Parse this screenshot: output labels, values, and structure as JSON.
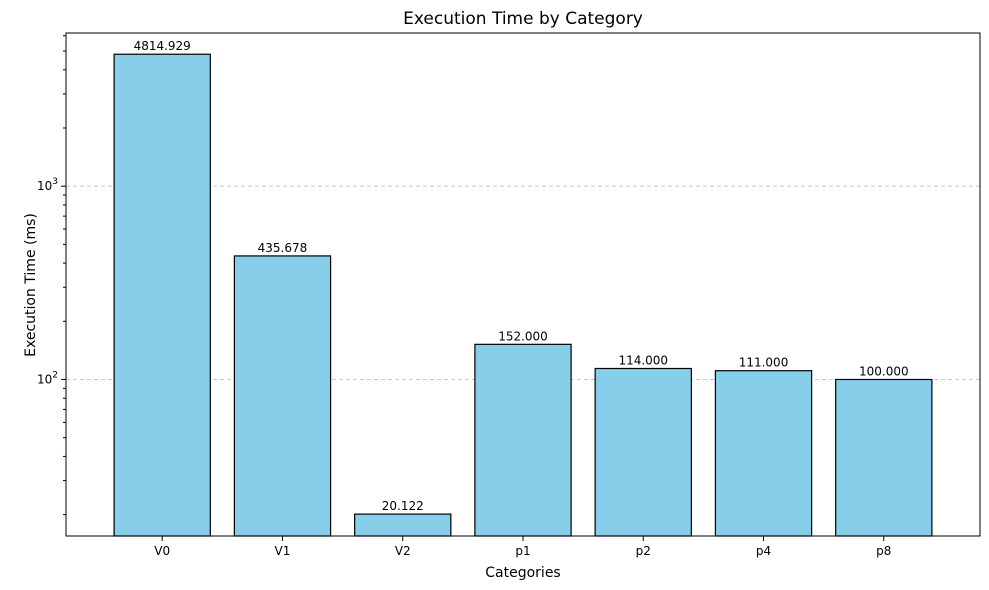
{
  "chart_data": {
    "type": "bar",
    "title": "Execution Time by Category",
    "xlabel": "Categories",
    "ylabel": "Execution Time (ms)",
    "yscale": "log",
    "ylim": [
      15.5,
      6200
    ],
    "grid": "y-major-dashed",
    "bar_color": "#87ceeb",
    "categories": [
      "V0",
      "V1",
      "V2",
      "p1",
      "p2",
      "p4",
      "p8"
    ],
    "values": [
      4814.929,
      435.678,
      20.122,
      152.0,
      114.0,
      111.0,
      100.0
    ],
    "value_labels": [
      "4814.929",
      "435.678",
      "20.122",
      "152.000",
      "114.000",
      "111.000",
      "100.000"
    ],
    "y_major_ticks": [
      {
        "value": 100,
        "base": "10",
        "exp": "2"
      },
      {
        "value": 1000,
        "base": "10",
        "exp": "3"
      }
    ]
  }
}
